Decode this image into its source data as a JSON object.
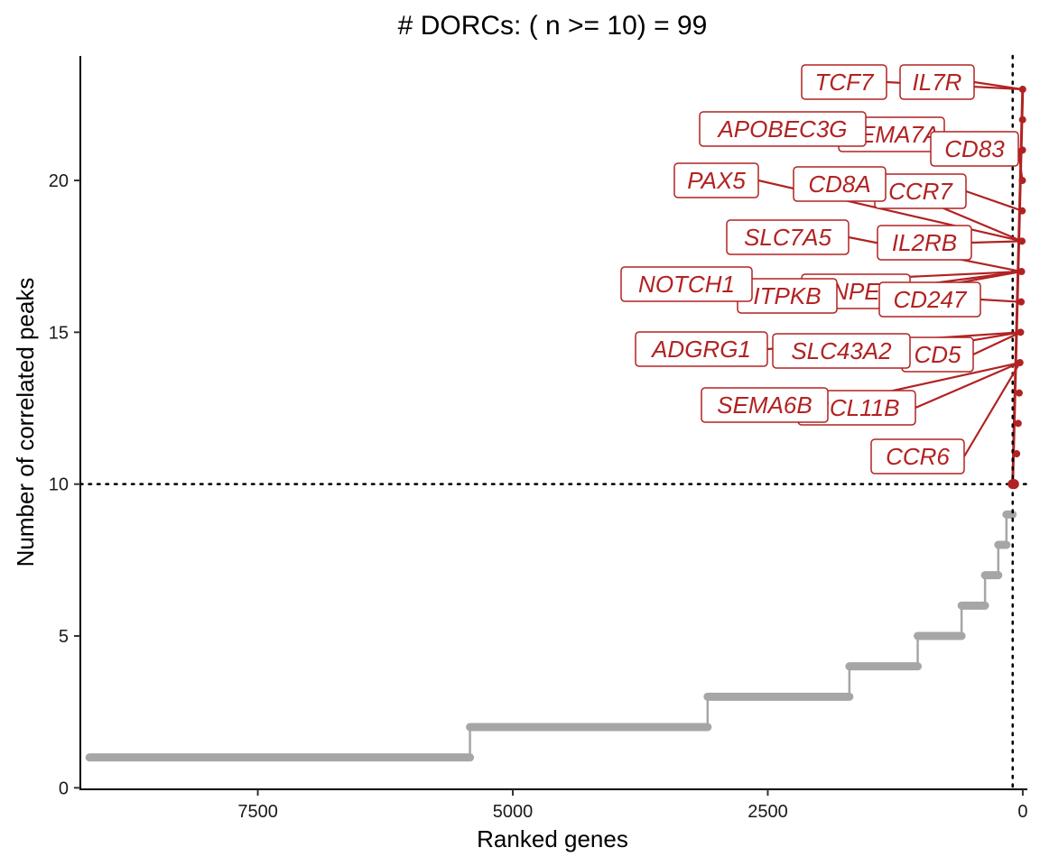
{
  "chart_data": {
    "type": "scatter",
    "title": "# DORCs: ( n >= 10) = 99",
    "xlabel": "Ranked genes",
    "ylabel": "Number of correlated peaks",
    "x_reversed": true,
    "xlim": [
      9240,
      -45
    ],
    "ylim": [
      -0.05,
      24.1
    ],
    "xticks": [
      7500,
      5000,
      2500,
      0
    ],
    "yticks": [
      0,
      5,
      10,
      15,
      20
    ],
    "x_tick_labels": [
      "7500",
      "5000",
      "2500",
      "0"
    ],
    "y_tick_labels": [
      "0",
      "5",
      "10",
      "15",
      "20"
    ],
    "threshold_y": 10,
    "threshold_x": 99,
    "grid": false,
    "legend": "none",
    "colors": {
      "below": "#a6a6a6",
      "above": "#b22222",
      "line": "#000000"
    },
    "series": [
      {
        "group": "below",
        "steps": [
          {
            "y": 1,
            "x_from": 9150,
            "x_to": 5420
          },
          {
            "y": 2,
            "x_from": 5420,
            "x_to": 3090
          },
          {
            "y": 3,
            "x_from": 3090,
            "x_to": 1700
          },
          {
            "y": 4,
            "x_from": 1700,
            "x_to": 1030
          },
          {
            "y": 5,
            "x_from": 1030,
            "x_to": 600
          },
          {
            "y": 6,
            "x_from": 600,
            "x_to": 370
          },
          {
            "y": 7,
            "x_from": 370,
            "x_to": 240
          },
          {
            "y": 8,
            "x_from": 240,
            "x_to": 160
          },
          {
            "y": 9,
            "x_from": 160,
            "x_to": 100
          }
        ]
      },
      {
        "group": "above",
        "points": [
          {
            "x": 99,
            "y": 10
          },
          {
            "x": 92,
            "y": 10
          },
          {
            "x": 85,
            "y": 10
          },
          {
            "x": 60,
            "y": 11
          },
          {
            "x": 45,
            "y": 12
          },
          {
            "x": 35,
            "y": 13
          },
          {
            "x": 28,
            "y": 14
          },
          {
            "x": 22,
            "y": 15
          },
          {
            "x": 16,
            "y": 16
          },
          {
            "x": 12,
            "y": 17
          },
          {
            "x": 8,
            "y": 18
          },
          {
            "x": 6,
            "y": 19
          },
          {
            "x": 4,
            "y": 20
          },
          {
            "x": 3,
            "y": 21
          },
          {
            "x": 2,
            "y": 22
          },
          {
            "x": 1,
            "y": 23
          }
        ]
      }
    ],
    "annotations": [
      {
        "text": "TCF7",
        "x": 1,
        "y": 23
      },
      {
        "text": "IL7R",
        "x": 1,
        "y": 23
      },
      {
        "text": "APOBEC3G",
        "x": 3,
        "y": 21
      },
      {
        "text": "SEMA7A",
        "x": 3,
        "y": 21
      },
      {
        "text": "CD83",
        "x": 4,
        "y": 20
      },
      {
        "text": "PAX5",
        "x": 8,
        "y": 18
      },
      {
        "text": "CD8A",
        "x": 8,
        "y": 18
      },
      {
        "text": "CCR7",
        "x": 6,
        "y": 19
      },
      {
        "text": "SLC7A5",
        "x": 12,
        "y": 17
      },
      {
        "text": "IL2RB",
        "x": 8,
        "y": 18
      },
      {
        "text": "NOTCH1",
        "x": 12,
        "y": 17
      },
      {
        "text": "ITPKB",
        "x": 12,
        "y": 17
      },
      {
        "text": "NPE",
        "x": 12,
        "y": 17
      },
      {
        "text": "CD247",
        "x": 16,
        "y": 16
      },
      {
        "text": "ADGRG1",
        "x": 22,
        "y": 15
      },
      {
        "text": "SLC43A2",
        "x": 22,
        "y": 15
      },
      {
        "text": "CD5",
        "x": 22,
        "y": 15
      },
      {
        "text": "SEMA6B",
        "x": 28,
        "y": 14
      },
      {
        "text": "BCL11B",
        "x": 28,
        "y": 14
      },
      {
        "text": "CCR6",
        "x": 28,
        "y": 14
      }
    ]
  }
}
